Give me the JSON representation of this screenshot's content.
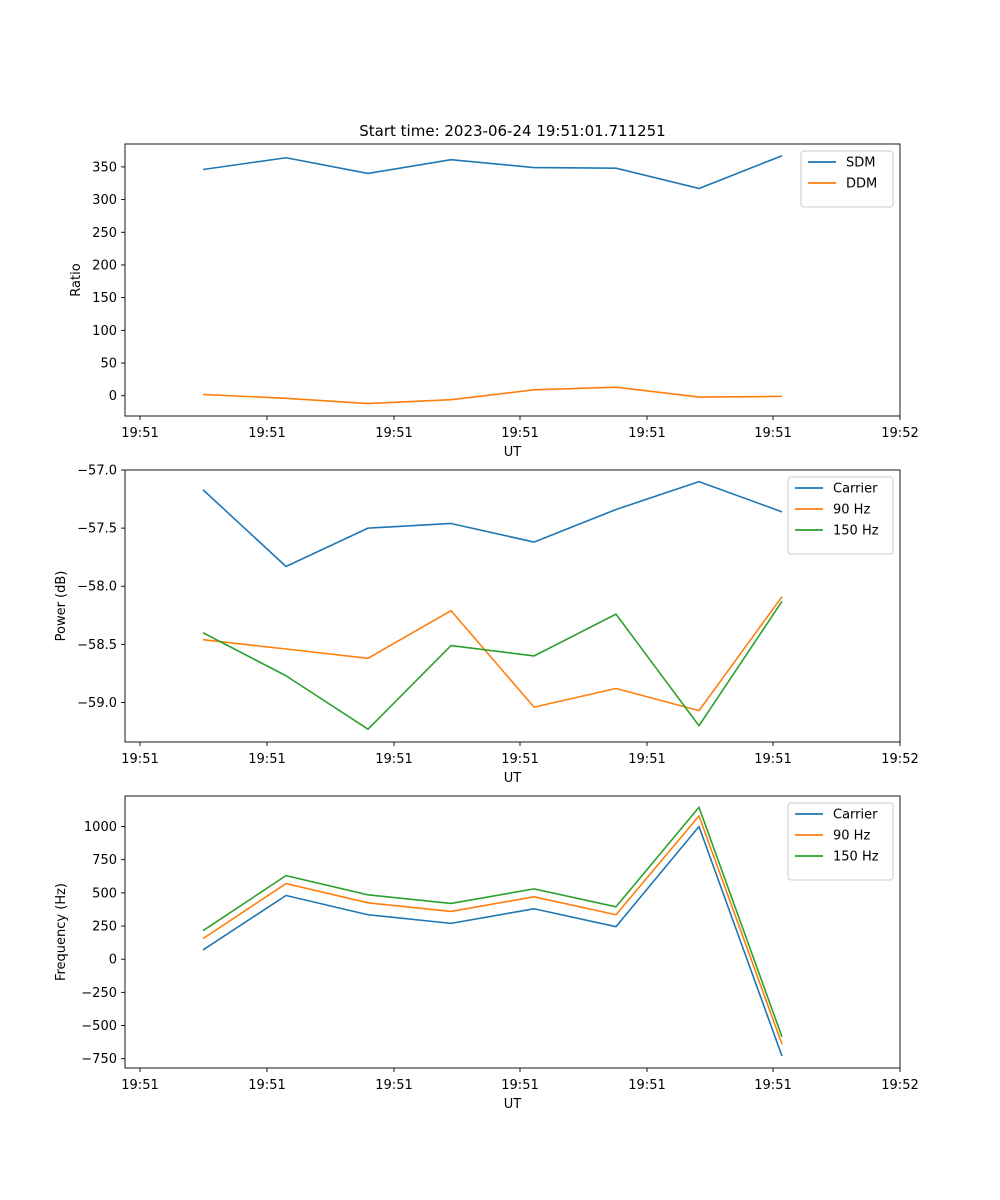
{
  "chart_data": [
    {
      "type": "line",
      "title": "Start time: 2023-06-24 19:51:01.711251",
      "xlabel": "UT",
      "ylabel": "Ratio",
      "x_tick_labels": [
        "19:51",
        "19:51",
        "19:51",
        "19:51",
        "19:51",
        "19:51",
        "19:52"
      ],
      "y_ticks": [
        0,
        50,
        100,
        150,
        200,
        250,
        300,
        350
      ],
      "y_tick_labels": [
        "0",
        "50",
        "100",
        "150",
        "200",
        "250",
        "300",
        "350"
      ],
      "ylim": [
        -31,
        385
      ],
      "grid": false,
      "legend_position": "top-right",
      "series": [
        {
          "name": "SDM",
          "color": "#1f77b4",
          "values": [
            346,
            364,
            340,
            361,
            349,
            348,
            317,
            367
          ]
        },
        {
          "name": "DDM",
          "color": "#ff7f0e",
          "values": [
            2,
            -4,
            -12,
            -6,
            9,
            13,
            -2,
            -1
          ]
        }
      ]
    },
    {
      "type": "line",
      "title": "",
      "xlabel": "UT",
      "ylabel": "Power (dB)",
      "x_tick_labels": [
        "19:51",
        "19:51",
        "19:51",
        "19:51",
        "19:51",
        "19:51",
        "19:52"
      ],
      "y_ticks": [
        -59.0,
        -58.5,
        -58.0,
        -57.5,
        -57.0
      ],
      "y_tick_labels": [
        "−59.0",
        "−58.5",
        "−58.0",
        "−57.5",
        "−57.0"
      ],
      "ylim": [
        -59.34,
        -57.0
      ],
      "grid": false,
      "legend_position": "top-right",
      "series": [
        {
          "name": "Carrier",
          "color": "#1f77b4",
          "values": [
            -57.17,
            -57.83,
            -57.5,
            -57.46,
            -57.62,
            -57.34,
            -57.1,
            -57.36
          ]
        },
        {
          "name": "90 Hz",
          "color": "#ff7f0e",
          "values": [
            -58.46,
            -58.54,
            -58.62,
            -58.21,
            -59.04,
            -58.88,
            -59.07,
            -58.09
          ]
        },
        {
          "name": "150 Hz",
          "color": "#2ca02c",
          "values": [
            -58.4,
            -58.77,
            -59.23,
            -58.51,
            -58.6,
            -58.24,
            -59.2,
            -58.13
          ]
        }
      ]
    },
    {
      "type": "line",
      "title": "",
      "xlabel": "UT",
      "ylabel": "Frequency (Hz)",
      "x_tick_labels": [
        "19:51",
        "19:51",
        "19:51",
        "19:51",
        "19:51",
        "19:51",
        "19:52"
      ],
      "y_ticks": [
        -750,
        -500,
        -250,
        0,
        250,
        500,
        750,
        1000
      ],
      "y_tick_labels": [
        "−750",
        "−500",
        "−250",
        "0",
        "250",
        "500",
        "750",
        "1000"
      ],
      "ylim": [
        -820,
        1230
      ],
      "grid": false,
      "legend_position": "top-right",
      "series": [
        {
          "name": "Carrier",
          "color": "#1f77b4",
          "values": [
            70,
            480,
            335,
            270,
            380,
            245,
            1000,
            -730
          ]
        },
        {
          "name": "90 Hz",
          "color": "#ff7f0e",
          "values": [
            155,
            570,
            425,
            360,
            470,
            335,
            1080,
            -640
          ]
        },
        {
          "name": "150 Hz",
          "color": "#2ca02c",
          "values": [
            215,
            630,
            485,
            420,
            530,
            395,
            1145,
            -585
          ]
        }
      ]
    }
  ]
}
